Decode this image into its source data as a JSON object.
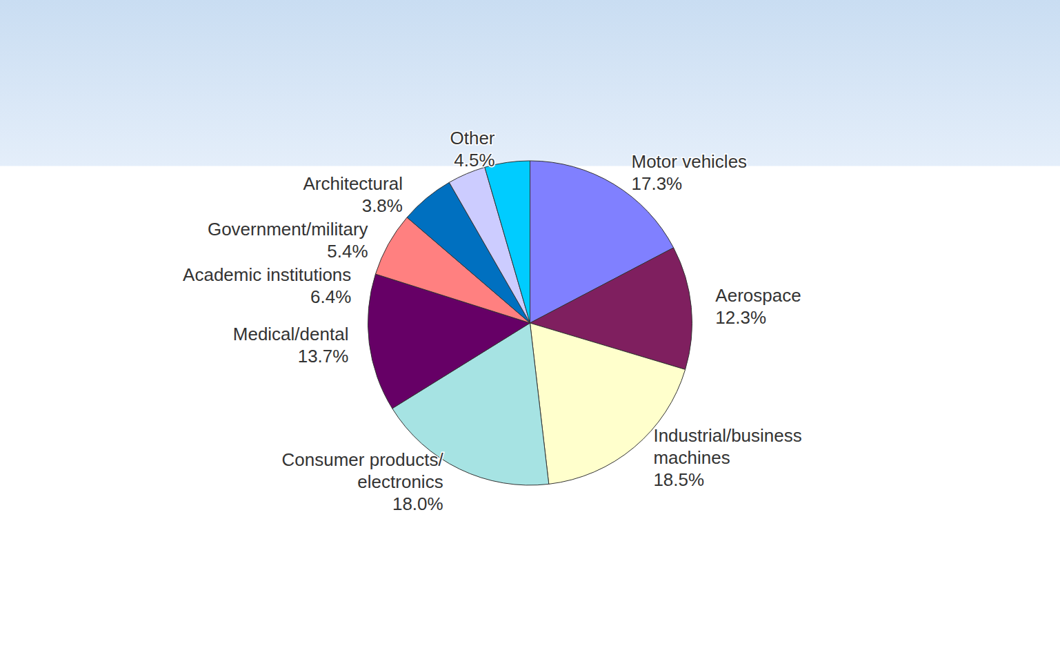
{
  "chart_data": {
    "type": "pie",
    "categories": [
      "Motor vehicles",
      "Aerospace",
      "Industrial/business machines",
      "Consumer products/electronics",
      "Medical/dental",
      "Academic institutions",
      "Government/military",
      "Architectural",
      "Other"
    ],
    "values": [
      17.3,
      12.3,
      18.5,
      18.0,
      13.7,
      6.4,
      5.4,
      3.8,
      4.5
    ],
    "value_labels": [
      "17.3%",
      "12.3%",
      "18.5%",
      "18.0%",
      "13.7%",
      "6.4%",
      "5.4%",
      "3.8%",
      "4.5%"
    ],
    "colors": [
      "#8080ff",
      "#7f1f5f",
      "#ffffcc",
      "#a6e3e3",
      "#660066",
      "#ff8080",
      "#0070c0",
      "#ccccff",
      "#00ccff"
    ],
    "data_labels": true
  }
}
